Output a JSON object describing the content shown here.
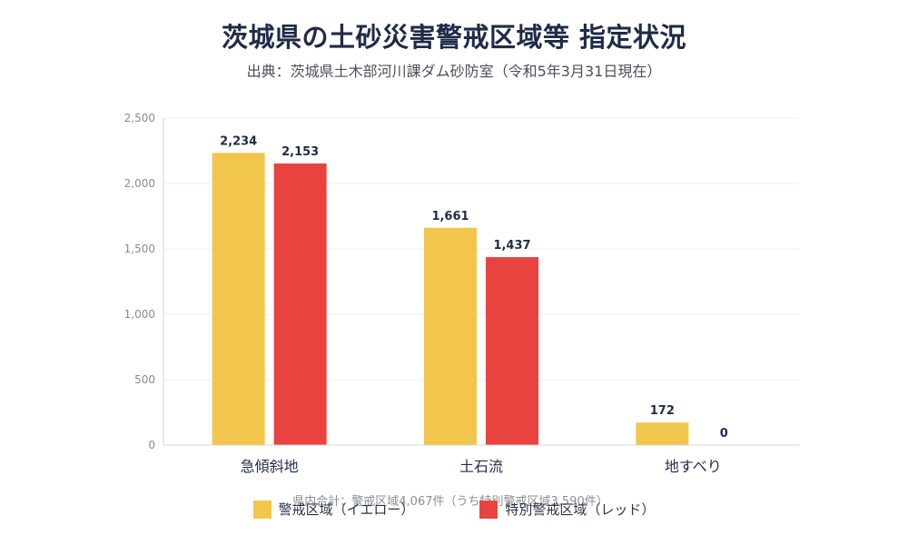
{
  "title": "茨城県の土砂災害警戒区域等 指定状況",
  "subtitle": "出典：茨城県土木部河川課ダム砂防室（令和5年3月31日現在）",
  "note": "県内合計：警戒区域4,067件（うち特別警戒区域3,590件）",
  "colors": {
    "yellow": "#f2c64c",
    "red": "#e8433f"
  },
  "chart_data": {
    "type": "bar",
    "title": "茨城県の土砂災害警戒区域等 指定状況",
    "categories": [
      "急傾斜地",
      "土石流",
      "地すべり"
    ],
    "series": [
      {
        "name": "警戒区域（イエロー）",
        "color": "#f2c64c",
        "values": [
          2234,
          1661,
          172
        ]
      },
      {
        "name": "特別警戒区域（レッド）",
        "color": "#e8433f",
        "values": [
          2153,
          1437,
          0
        ]
      }
    ],
    "yticks": [
      "0",
      "500",
      "1,000",
      "1,500",
      "2,000",
      "2,500"
    ],
    "ylim": [
      0,
      2500
    ],
    "grid": true,
    "legend_position": "bottom",
    "xlabel": "",
    "ylabel": ""
  }
}
